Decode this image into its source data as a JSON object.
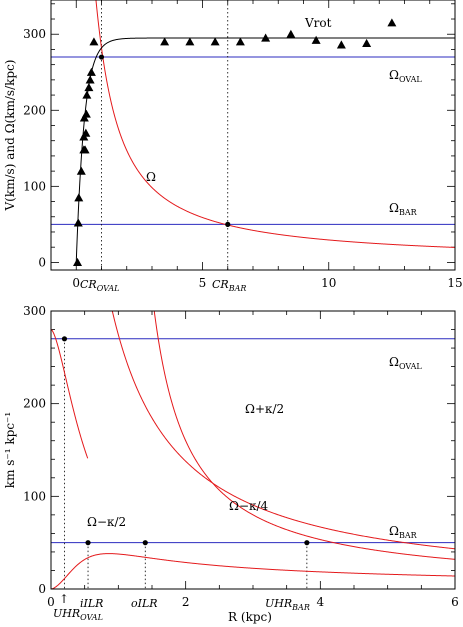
{
  "chart_data": [
    {
      "type": "scatter",
      "xlim": [
        -1,
        15
      ],
      "ylim": [
        -10,
        345
      ],
      "ylabel": "V(km/s) and Ω(km/s/kpc)",
      "xticks": [
        0,
        5,
        10,
        15
      ],
      "yticks": [
        0,
        100,
        200,
        300
      ],
      "series": [
        {
          "name": "Vrot",
          "marker": "triangle",
          "points": [
            [
              0.05,
              0
            ],
            [
              0.08,
              52
            ],
            [
              0.1,
              85
            ],
            [
              0.2,
              120
            ],
            [
              0.3,
              148
            ],
            [
              0.35,
              148
            ],
            [
              0.3,
              165
            ],
            [
              0.38,
              170
            ],
            [
              0.32,
              190
            ],
            [
              0.4,
              195
            ],
            [
              0.42,
              220
            ],
            [
              0.5,
              230
            ],
            [
              0.55,
              240
            ],
            [
              0.6,
              250
            ],
            [
              0.7,
              290
            ],
            [
              3.5,
              290
            ],
            [
              4.5,
              290
            ],
            [
              5.5,
              290
            ],
            [
              6.5,
              290
            ],
            [
              7.5,
              295
            ],
            [
              8.5,
              300
            ],
            [
              9.5,
              292
            ],
            [
              10.5,
              286
            ],
            [
              11.5,
              288
            ],
            [
              12.5,
              315
            ]
          ]
        }
      ],
      "curves": [
        {
          "name": "Vrot model",
          "color": "#000000"
        },
        {
          "name": "Ω",
          "color": "#e41a1c"
        }
      ],
      "hlines": [
        {
          "label": "Ω",
          "sub": "OVAL",
          "y": 270,
          "color": "#2b2bbf"
        },
        {
          "label": "Ω",
          "sub": "BAR",
          "y": 50,
          "color": "#2b2bbf"
        }
      ],
      "vlines": [
        {
          "label": "CR",
          "sub": "OVAL",
          "x": 1.0
        },
        {
          "label": "CR",
          "sub": "BAR",
          "x": 6.0
        }
      ],
      "labels": {
        "vrot": "Vrot",
        "omega": "Ω"
      }
    },
    {
      "type": "line",
      "xlim": [
        0,
        6
      ],
      "ylim": [
        0,
        300
      ],
      "xlabel": "R (kpc)",
      "ylabel": "km s⁻¹ kpc⁻¹",
      "xticks": [
        0,
        2,
        4,
        6
      ],
      "yticks": [
        0,
        100,
        200,
        300
      ],
      "curves": [
        {
          "name": "Ω+κ/2",
          "color": "#e41a1c"
        },
        {
          "name": "Ω−κ/4",
          "color": "#e41a1c"
        },
        {
          "name": "Ω−κ/2",
          "color": "#e41a1c"
        }
      ],
      "hlines": [
        {
          "label": "Ω",
          "sub": "OVAL",
          "y": 270,
          "color": "#2b2bbf"
        },
        {
          "label": "Ω",
          "sub": "BAR",
          "y": 50,
          "color": "#2b2bbf"
        }
      ],
      "vlines": [
        {
          "label": "UHR",
          "sub": "OVAL",
          "x": 0.2
        },
        {
          "label": "iILR",
          "sub": "",
          "x": 0.55
        },
        {
          "label": "oILR",
          "sub": "",
          "x": 1.4
        },
        {
          "label": "UHR",
          "sub": "BAR",
          "x": 3.8
        }
      ],
      "points": [
        [
          0.2,
          270
        ],
        [
          0.55,
          50
        ],
        [
          1.4,
          50
        ],
        [
          3.8,
          50
        ]
      ],
      "labels": {
        "omega_plus_kappa_2": "Ω+κ/2",
        "omega_minus_kappa_4": "Ω−κ/4",
        "omega_minus_kappa_2": "Ω−κ/2"
      }
    }
  ]
}
